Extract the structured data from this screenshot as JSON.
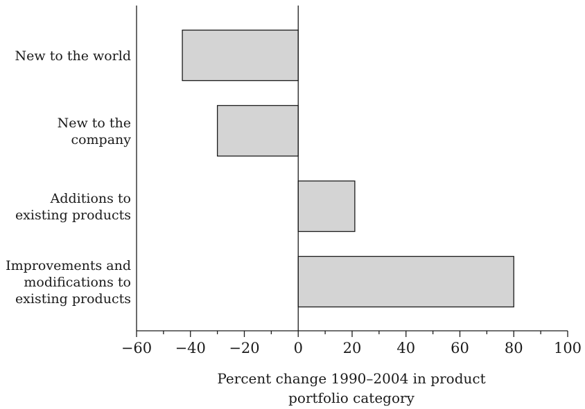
{
  "chart_data": {
    "type": "bar",
    "orientation": "horizontal",
    "categories": [
      "New to the world",
      "New to the company",
      "Additions to existing products",
      "Improvements and modifications to existing products"
    ],
    "category_label_lines": [
      [
        "New to the world"
      ],
      [
        "New to the",
        "company"
      ],
      [
        "Additions to",
        "existing products"
      ],
      [
        "Improvements and",
        "modifications to",
        "existing products"
      ]
    ],
    "values": [
      -43,
      -30,
      21,
      80
    ],
    "xlabel_lines": [
      "Percent change 1990–2004 in product",
      "portfolio category"
    ],
    "xlim": [
      -60,
      100
    ],
    "x_ticks": [
      -60,
      -40,
      -20,
      0,
      20,
      40,
      60,
      80,
      100
    ],
    "x_tick_labels": [
      "−60",
      "−40",
      "−20",
      "0",
      "20",
      "40",
      "60",
      "80",
      "100"
    ],
    "grid": false,
    "bar_color": "#d4d4d4",
    "bar_edge_color": "#1a1a1a"
  }
}
